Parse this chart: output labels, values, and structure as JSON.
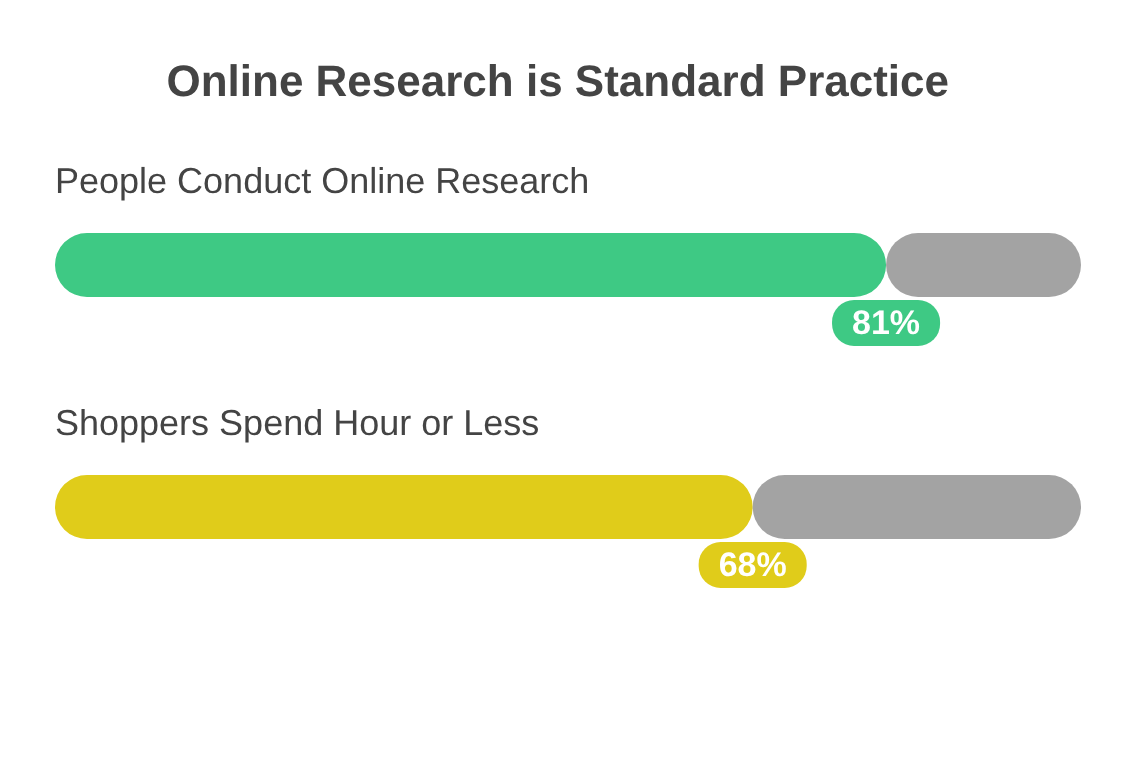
{
  "chart_data": {
    "type": "bar",
    "orientation": "horizontal",
    "stacked": true,
    "title": "Online Research is Standard Practice",
    "categories": [
      "People Conduct Online Research",
      "Shoppers Spend Hour or Less"
    ],
    "series": [
      {
        "values": [
          81,
          68
        ],
        "colors": [
          "#3ec984",
          "#e0cc1a"
        ],
        "value_labels": [
          "81%",
          "68%"
        ]
      },
      {
        "values": [
          19,
          32
        ],
        "color": "#a3a3a3"
      }
    ],
    "xlim": [
      0,
      100
    ],
    "tick_labels": false
  }
}
